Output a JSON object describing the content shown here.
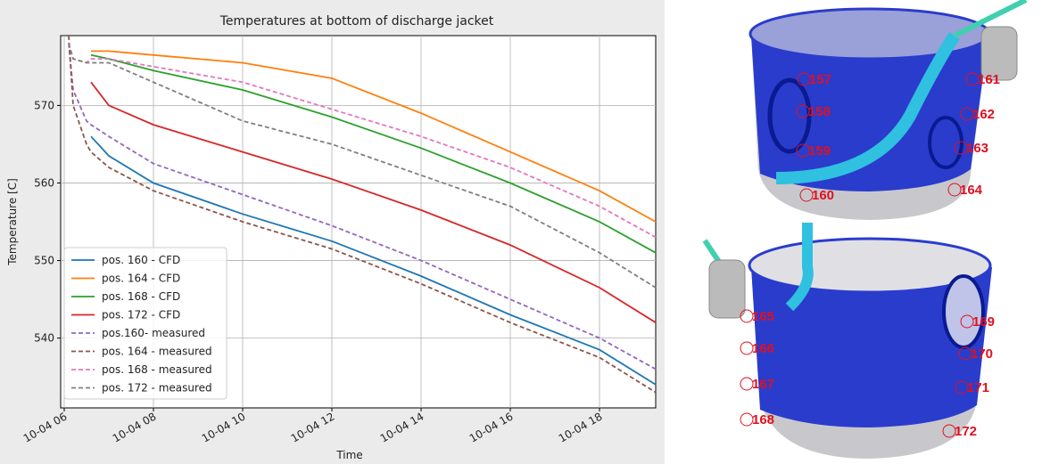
{
  "chart_data": {
    "type": "line",
    "title": "Temperatures at bottom of discharge jacket",
    "x_label": "Time",
    "y_label": "Temperature [C]",
    "x": [
      6.1,
      6.2,
      6.5,
      6.6,
      7,
      8,
      10,
      12,
      14,
      16,
      18,
      19.26
    ],
    "series": [
      {
        "name": "pos. 160  - CFD",
        "color": "#1f77b4",
        "linestyle": "solid",
        "values": [
          null,
          null,
          null,
          566,
          563.5,
          560,
          556,
          552.5,
          548,
          543,
          538.5,
          534
        ]
      },
      {
        "name": "pos. 164 - CFD",
        "color": "#ff7f0e",
        "linestyle": "solid",
        "values": [
          null,
          null,
          null,
          577,
          577,
          576.5,
          575.5,
          573.5,
          569,
          564,
          559,
          555
        ]
      },
      {
        "name": "pos. 168 - CFD",
        "color": "#2ca02c",
        "linestyle": "solid",
        "values": [
          null,
          null,
          null,
          576.5,
          576,
          574.5,
          572,
          568.5,
          564.5,
          560,
          555,
          551
        ]
      },
      {
        "name": "pos. 172 - CFD",
        "color": "#d62728",
        "linestyle": "solid",
        "values": [
          null,
          null,
          null,
          573,
          570,
          567.5,
          564,
          560.5,
          556.5,
          552,
          546.5,
          542
        ]
      },
      {
        "name": "pos.160- measured",
        "color": "#9467bd",
        "linestyle": "dashed",
        "values": [
          578,
          572,
          568,
          567.5,
          566,
          562.5,
          558.5,
          554.5,
          550,
          545,
          540,
          536
        ]
      },
      {
        "name": "pos. 164 - measured",
        "color": "#8c564b",
        "linestyle": "dashed",
        "values": [
          579,
          570,
          565,
          564,
          562,
          559,
          555,
          551.5,
          547,
          542,
          537.5,
          533
        ]
      },
      {
        "name": "pos. 168 - measured",
        "color": "#e377c2",
        "linestyle": "dashed",
        "values": [
          578,
          576,
          575.5,
          576,
          576,
          575,
          573,
          569.5,
          566,
          562,
          557,
          553
        ]
      },
      {
        "name": "pos. 172 - measured",
        "color": "#7f7f7f",
        "linestyle": "dashed",
        "values": [
          578,
          576,
          575.5,
          575.5,
          575.5,
          573,
          568,
          565,
          561,
          557,
          551,
          546.5
        ]
      }
    ],
    "xlim": [
      5.92,
      19.26
    ],
    "ylim": [
      531,
      579
    ],
    "xticks": [
      {
        "value": 6,
        "label": "10-04 06"
      },
      {
        "value": 8,
        "label": "10-04 08"
      },
      {
        "value": 10,
        "label": "10-04 10"
      },
      {
        "value": 12,
        "label": "10-04 12"
      },
      {
        "value": 14,
        "label": "10-04 14"
      },
      {
        "value": 16,
        "label": "10-04 16"
      },
      {
        "value": 18,
        "label": "10-04 18"
      }
    ],
    "yticks": [
      540,
      550,
      560,
      570
    ],
    "grid": true,
    "legend": "lower left"
  },
  "illustration": {
    "top_labels": [
      "157",
      "158",
      "159",
      "160",
      "161",
      "162",
      "163",
      "164"
    ],
    "bottom_labels": [
      "165",
      "166",
      "167",
      "168",
      "169",
      "170",
      "171",
      "172"
    ]
  }
}
